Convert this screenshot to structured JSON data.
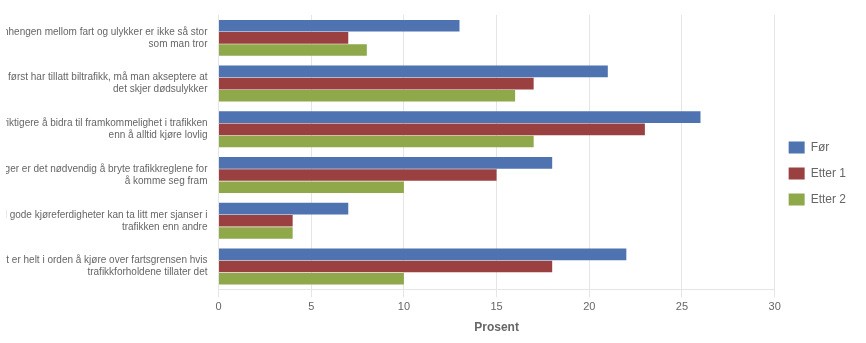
{
  "chart_data": {
    "type": "bar",
    "orientation": "horizontal",
    "categories": [
      "Sammenhengen mellom fart og ulykker er ikke så stor\nsom man tror",
      "Når man først har tillatt biltrafikk, må man akseptere at\ndet skjer dødsulykker",
      "Det er viktigere å bidra til framkommelighet i trafikken\nenn å alltid kjøre lovlig",
      "Noen ganger er det nødvendig å bryte trafikkreglene for\nå komme seg fram",
      "En med gode kjøreferdigheter kan ta litt mer sjanser i\ntrafikken enn andre",
      "Det er helt i orden å kjøre over fartsgrensen hvis\ntrafikkforholdene tillater det"
    ],
    "series": [
      {
        "name": "Før",
        "color": "#4F72B0",
        "values": [
          13,
          21,
          26,
          18,
          7,
          22
        ]
      },
      {
        "name": "Etter 1",
        "color": "#9B4040",
        "values": [
          7,
          17,
          23,
          15,
          4,
          18
        ]
      },
      {
        "name": "Etter 2",
        "color": "#8FA84A",
        "values": [
          8,
          16,
          17,
          10,
          4,
          10
        ]
      }
    ],
    "x_label": "Prosent",
    "xlim": [
      0,
      30
    ],
    "xticks": [
      0,
      5,
      10,
      15,
      20,
      25,
      30
    ],
    "grid": true,
    "legend": "right"
  }
}
